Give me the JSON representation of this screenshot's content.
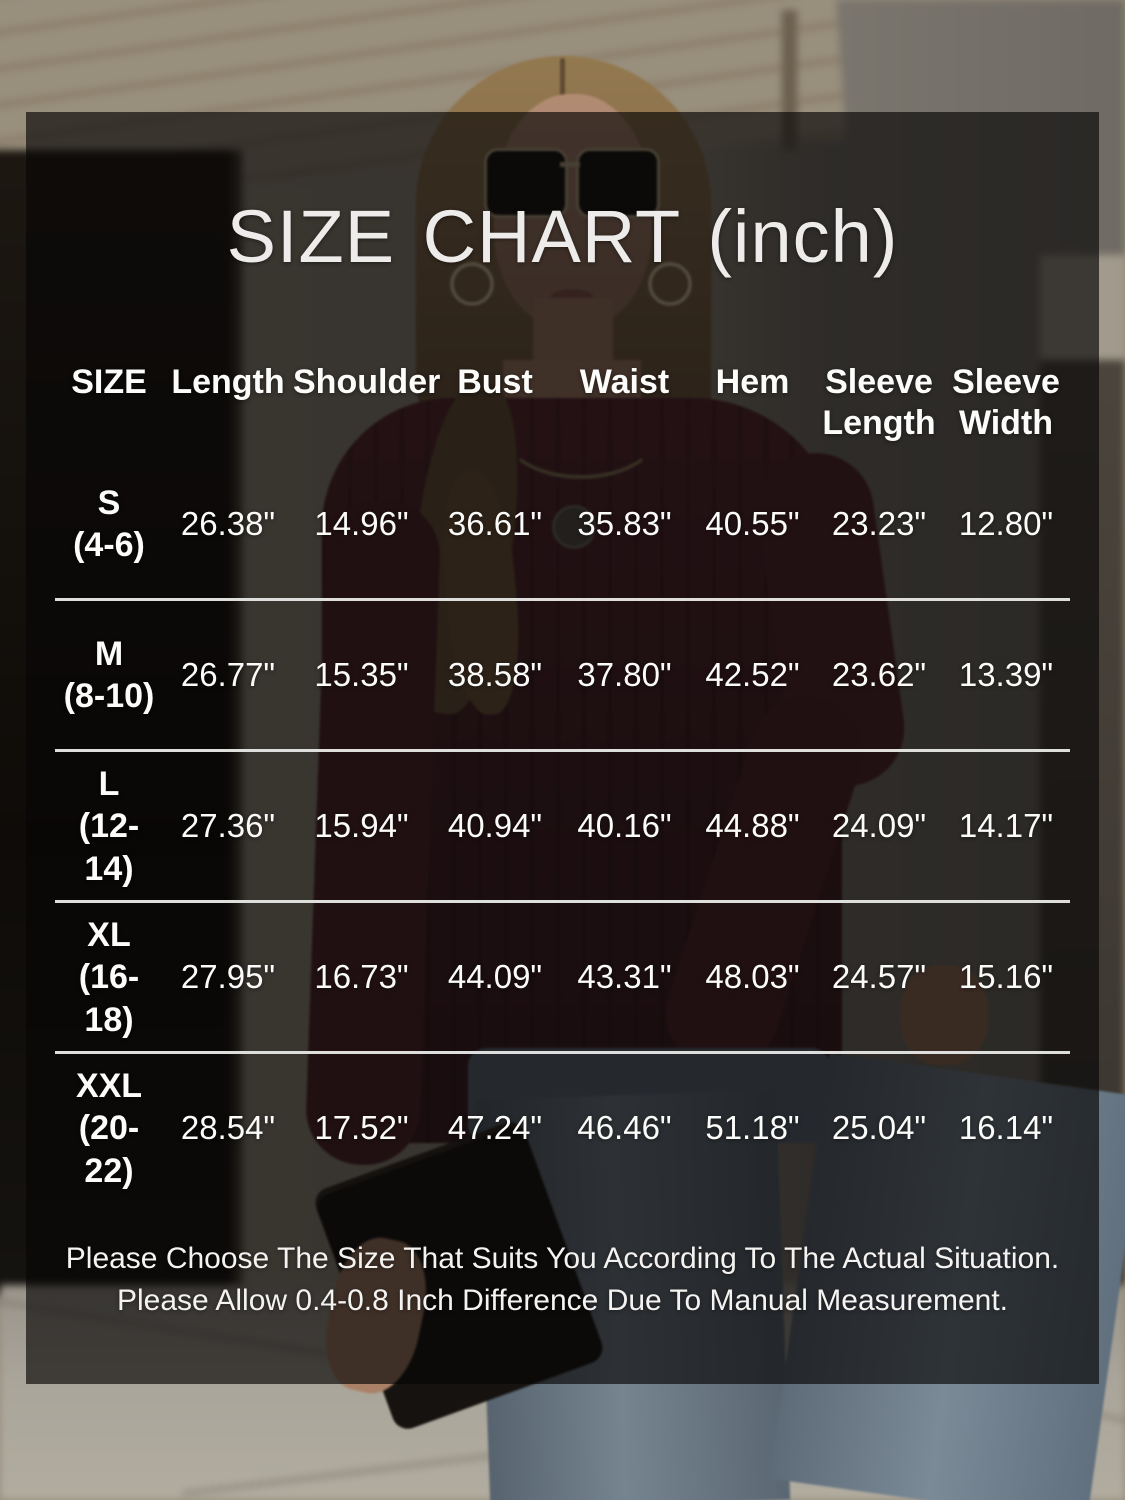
{
  "title": "SIZE CHART (inch)",
  "header": {
    "cells": [
      {
        "line1": "SIZE",
        "line2": ""
      },
      {
        "line1": "Length",
        "line2": ""
      },
      {
        "line1": "Shoulder",
        "line2": ""
      },
      {
        "line1": "Bust",
        "line2": ""
      },
      {
        "line1": "Waist",
        "line2": ""
      },
      {
        "line1": "Hem",
        "line2": ""
      },
      {
        "line1": "Sleeve",
        "line2": "Length"
      },
      {
        "line1": "Sleeve",
        "line2": "Width"
      }
    ]
  },
  "chart_data": {
    "type": "table",
    "title": "SIZE CHART (inch)",
    "unit": "inch",
    "columns": [
      "SIZE",
      "Length",
      "Shoulder",
      "Bust",
      "Waist",
      "Hem",
      "Sleeve Length",
      "Sleeve Width"
    ],
    "rows": [
      {
        "size": "S",
        "fit": "(4-6)",
        "values": [
          "26.38\"",
          "14.96\"",
          "36.61\"",
          "35.83\"",
          "40.55\"",
          "23.23\"",
          "12.80\""
        ]
      },
      {
        "size": "M",
        "fit": "(8-10)",
        "values": [
          "26.77\"",
          "15.35\"",
          "38.58\"",
          "37.80\"",
          "42.52\"",
          "23.62\"",
          "13.39\""
        ]
      },
      {
        "size": "L",
        "fit": "(12-14)",
        "values": [
          "27.36\"",
          "15.94\"",
          "40.94\"",
          "40.16\"",
          "44.88\"",
          "24.09\"",
          "14.17\""
        ]
      },
      {
        "size": "XL",
        "fit": "(16-18)",
        "values": [
          "27.95\"",
          "16.73\"",
          "44.09\"",
          "43.31\"",
          "48.03\"",
          "24.57\"",
          "15.16\""
        ]
      },
      {
        "size": "XXL",
        "fit": "(20-22)",
        "values": [
          "28.54\"",
          "17.52\"",
          "47.24\"",
          "46.46\"",
          "51.18\"",
          "25.04\"",
          "16.14\""
        ]
      }
    ]
  },
  "footer": {
    "line1": "Please Choose The Size That Suits You According To The Actual Situation.",
    "line2": "Please Allow 0.4-0.8 Inch Difference Due To Manual Measurement."
  },
  "colors": {
    "overlay": "rgba(8,6,6,0.66)",
    "text": "#f2f1ef",
    "divider": "#dededc"
  }
}
